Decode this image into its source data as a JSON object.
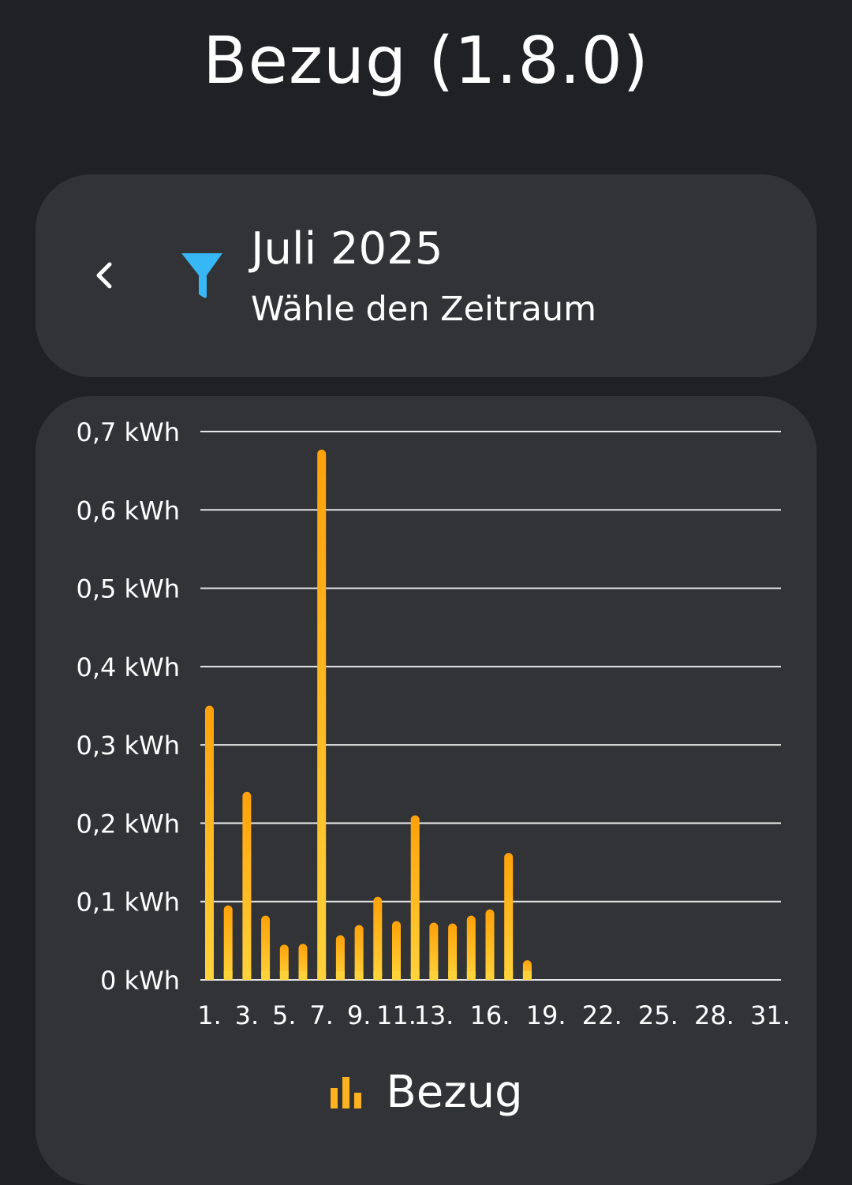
{
  "header": {
    "title": "Bezug (1.8.0)"
  },
  "period": {
    "month_label": "Juli 2025",
    "hint": "Wähle den Zeitraum",
    "back_icon": "chevron-left-icon",
    "filter_icon": "filter-icon"
  },
  "colors": {
    "background": "#202125",
    "card": "#323337",
    "accent_bar_top": "#ffa10a",
    "accent_bar_bottom": "#ffd23a",
    "filter_icon": "#37b7f5",
    "grid": "#e6e6e6"
  },
  "legend": {
    "label": "Bezug",
    "icon": "bar-chart-icon"
  },
  "chart_data": {
    "type": "bar",
    "title": "",
    "xlabel": "",
    "ylabel": "",
    "ylim": [
      0,
      0.7
    ],
    "y_ticks": [
      {
        "value": 0.7,
        "label": "0,7 kWh"
      },
      {
        "value": 0.6,
        "label": "0,6 kWh"
      },
      {
        "value": 0.5,
        "label": "0,5 kWh"
      },
      {
        "value": 0.4,
        "label": "0,4 kWh"
      },
      {
        "value": 0.3,
        "label": "0,3 kWh"
      },
      {
        "value": 0.2,
        "label": "0,2 kWh"
      },
      {
        "value": 0.1,
        "label": "0,1 kWh"
      },
      {
        "value": 0.0,
        "label": "0 kWh"
      }
    ],
    "x_tick_labels": [
      {
        "day": 1,
        "label": "1."
      },
      {
        "day": 3,
        "label": "3."
      },
      {
        "day": 5,
        "label": "5."
      },
      {
        "day": 7,
        "label": "7."
      },
      {
        "day": 9,
        "label": "9."
      },
      {
        "day": 11,
        "label": "11."
      },
      {
        "day": 13,
        "label": "13."
      },
      {
        "day": 16,
        "label": "16."
      },
      {
        "day": 19,
        "label": "19."
      },
      {
        "day": 22,
        "label": "22."
      },
      {
        "day": 25,
        "label": "25."
      },
      {
        "day": 28,
        "label": "28."
      },
      {
        "day": 31,
        "label": "31."
      }
    ],
    "series": [
      {
        "name": "Bezug",
        "x": [
          1,
          2,
          3,
          4,
          5,
          6,
          7,
          8,
          9,
          10,
          11,
          12,
          13,
          14,
          15,
          16,
          17,
          18
        ],
        "values": [
          0.35,
          0.095,
          0.24,
          0.082,
          0.045,
          0.046,
          0.677,
          0.057,
          0.07,
          0.106,
          0.075,
          0.21,
          0.073,
          0.072,
          0.082,
          0.09,
          0.162,
          0.025
        ]
      }
    ]
  }
}
